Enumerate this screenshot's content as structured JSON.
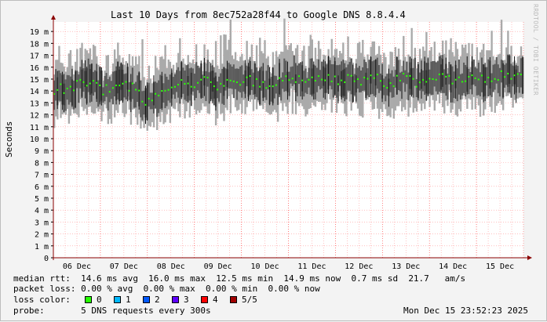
{
  "chart_data": {
    "type": "line",
    "title": "Last 10 Days from 8ec752a28f44 to Google DNS 8.8.4.4",
    "ylabel": "Seconds",
    "watermark": "RRDTOOL / TOBI OETIKER",
    "ylim": [
      0,
      19.8
    ],
    "y_ticks": [
      0,
      1,
      2,
      3,
      4,
      5,
      6,
      7,
      8,
      9,
      10,
      11,
      12,
      13,
      14,
      15,
      16,
      17,
      18,
      19
    ],
    "y_tick_labels": [
      "0",
      "1 m",
      "2 m",
      "3 m",
      "4 m",
      "5 m",
      "6 m",
      "7 m",
      "8 m",
      "9 m",
      "10 m",
      "11 m",
      "12 m",
      "13 m",
      "14 m",
      "15 m",
      "16 m",
      "17 m",
      "18 m",
      "19 m"
    ],
    "x_tick_labels": [
      "06 Dec",
      "07 Dec",
      "08 Dec",
      "09 Dec",
      "10 Dec",
      "11 Dec",
      "12 Dec",
      "13 Dec",
      "14 Dec",
      "15 Dec"
    ],
    "x_range_days": [
      0,
      10
    ],
    "x": [
      0.2,
      0.5,
      0.8,
      1.1,
      1.4,
      1.7,
      2.0,
      2.3,
      2.6,
      2.9,
      3.2,
      3.5,
      3.8,
      4.1,
      4.4,
      4.7,
      5.0,
      5.3,
      5.6,
      5.9,
      6.2,
      6.5,
      6.8,
      7.1,
      7.4,
      7.7,
      8.0,
      8.3,
      8.6,
      8.9,
      9.2,
      9.5,
      9.8
    ],
    "series": [
      {
        "values": [
          14.2,
          14.5,
          14.9,
          14.0,
          14.6,
          14.2,
          13.1,
          13.8,
          14.4,
          14.6,
          14.9,
          14.3,
          14.9,
          15.0,
          14.8,
          14.5,
          15.2,
          14.8,
          15.0,
          14.9,
          15.1,
          14.7,
          15.3,
          14.5,
          15.1,
          14.8,
          14.9,
          15.1,
          14.7,
          15.2,
          14.8,
          15.3,
          15.0
        ]
      }
    ],
    "grid": true
  },
  "legend": {
    "median_rtt": "median rtt:  14.6 ms avg  16.0 ms max  12.5 ms min  14.9 ms now  0.7 ms sd  21.7   am/s",
    "packet_loss": "packet loss: 0.00 % avg  0.00 % max  0.00 % min  0.00 % now",
    "loss_color_label": "loss color:",
    "loss_items": [
      {
        "label": "0",
        "color": "#26ff00"
      },
      {
        "label": "1",
        "color": "#00b8ff"
      },
      {
        "label": "2",
        "color": "#0059ff"
      },
      {
        "label": "3",
        "color": "#5e00ff"
      },
      {
        "label": "4",
        "color": "#ff0000"
      },
      {
        "label": "5/5",
        "color": "#a10000"
      }
    ],
    "probe": "probe:       5 DNS requests every 300s",
    "timestamp": "Mon Dec 15 23:52:23 2025"
  },
  "colors": {
    "band_outer": "#aaaaaa",
    "band_inner": "#5b5b5b",
    "median": "#26ff00",
    "grid_minor": "#ff9999",
    "axis": "#8b0000"
  }
}
